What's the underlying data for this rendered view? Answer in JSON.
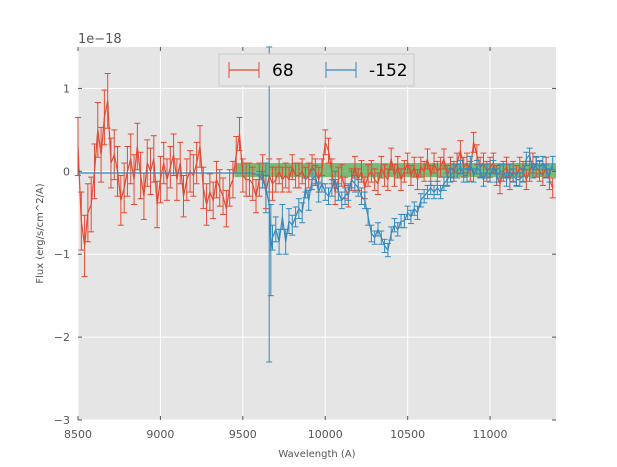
{
  "chart_data": {
    "type": "line",
    "xlabel": "Wavelength (A)",
    "ylabel": "Flux (erg/s/cm^2/A)",
    "y_offset_label": "1e−18",
    "xlim": [
      8500,
      11400
    ],
    "ylim": [
      -3,
      1.5
    ],
    "x_ticks": [
      8500,
      9000,
      9500,
      10000,
      10500,
      11000
    ],
    "y_ticks": [
      -3,
      -2,
      -1,
      0,
      1
    ],
    "x_tick_labels": [
      "8500",
      "9000",
      "9500",
      "10000",
      "10500",
      "11000"
    ],
    "y_tick_labels": [
      "−3",
      "−2",
      "−1",
      "0",
      "1"
    ],
    "grid": true,
    "background": "#e5e5e5",
    "legend_position": "top-center",
    "highlight_band": {
      "x": [
        9450,
        11400
      ],
      "y": [
        -0.07,
        0.1
      ],
      "color": "#2ca02c"
    },
    "series": [
      {
        "name": "68",
        "color": "#e24a33",
        "x": [
          8500,
          8520,
          8540,
          8560,
          8580,
          8600,
          8620,
          8640,
          8660,
          8680,
          8700,
          8720,
          8740,
          8760,
          8780,
          8800,
          8820,
          8840,
          8860,
          8880,
          8900,
          8920,
          8940,
          8960,
          8980,
          9000,
          9020,
          9040,
          9060,
          9080,
          9100,
          9120,
          9140,
          9160,
          9180,
          9200,
          9220,
          9240,
          9260,
          9280,
          9300,
          9320,
          9340,
          9360,
          9380,
          9400,
          9420,
          9440,
          9460,
          9480,
          9500,
          9520,
          9540,
          9560,
          9580,
          9600,
          9620,
          9640,
          9660,
          9680,
          9700,
          9720,
          9740,
          9760,
          9780,
          9800,
          9820,
          9840,
          9860,
          9880,
          9900,
          9920,
          9940,
          9960,
          9980,
          10000,
          10020,
          10040,
          10060,
          10080,
          10100,
          10120,
          10140,
          10160,
          10180,
          10200,
          10220,
          10240,
          10260,
          10280,
          10300,
          10320,
          10340,
          10360,
          10380,
          10400,
          10420,
          10440,
          10460,
          10480,
          10500,
          10520,
          10540,
          10560,
          10580,
          10600,
          10620,
          10640,
          10660,
          10680,
          10700,
          10720,
          10740,
          10760,
          10780,
          10800,
          10820,
          10840,
          10860,
          10880,
          10900,
          10920,
          10940,
          10960,
          10980,
          11000,
          11020,
          11040,
          11060,
          11080,
          11100,
          11120,
          11140,
          11160,
          11180,
          11200,
          11220,
          11240,
          11260,
          11280,
          11300,
          11320,
          11340,
          11360,
          11380
        ],
        "y": [
          0.3,
          -0.6,
          -0.9,
          -0.5,
          -0.4,
          0.0,
          0.5,
          0.2,
          0.65,
          0.85,
          0.1,
          0.2,
          0.0,
          -0.35,
          -0.2,
          0.0,
          0.15,
          -0.1,
          0.3,
          -0.05,
          -0.3,
          0.1,
          0.0,
          0.15,
          -0.4,
          -0.1,
          0.1,
          -0.1,
          0.05,
          0.2,
          -0.1,
          0.1,
          -0.3,
          -0.1,
          0.0,
          -0.05,
          0.1,
          0.3,
          -0.2,
          -0.4,
          -0.25,
          -0.35,
          -0.1,
          -0.2,
          -0.3,
          -0.45,
          -0.2,
          -0.1,
          0.2,
          0.45,
          -0.05,
          -0.1,
          -0.1,
          -0.15,
          -0.3,
          -0.1,
          0.0,
          -0.25,
          -0.05,
          -0.15,
          -0.1,
          0.0,
          -0.1,
          -0.05,
          -0.1,
          0.05,
          -0.05,
          -0.05,
          0.0,
          -0.1,
          -0.05,
          0.05,
          0.0,
          -0.1,
          0.0,
          0.35,
          0.25,
          0.0,
          -0.25,
          -0.1,
          -0.05,
          -0.2,
          -0.3,
          -0.1,
          0.05,
          -0.1,
          0.0,
          -0.2,
          -0.05,
          0.0,
          -0.1,
          -0.15,
          0.05,
          -0.05,
          -0.1,
          0.15,
          -0.05,
          0.05,
          -0.1,
          0.0,
          0.1,
          -0.05,
          0.05,
          -0.1,
          0.05,
          0.0,
          0.15,
          -0.05,
          0.1,
          0.0,
          0.05,
          0.15,
          -0.05,
          0.05,
          0.0,
          0.1,
          0.25,
          0.05,
          0.1,
          0.0,
          0.35,
          0.2,
          0.05,
          0.1,
          0.0,
          0.05,
          0.1,
          -0.05,
          -0.15,
          0.0,
          0.05,
          -0.1,
          0.0,
          -0.05,
          0.05,
          0.0,
          -0.1,
          0.0,
          0.1,
          0.05,
          0.0,
          -0.05,
          0.05,
          -0.1,
          -0.2
        ],
        "err": [
          0.35,
          0.35,
          0.37,
          0.35,
          0.33,
          0.33,
          0.33,
          0.33,
          0.33,
          0.33,
          0.3,
          0.3,
          0.3,
          0.3,
          0.3,
          0.3,
          0.3,
          0.3,
          0.28,
          0.28,
          0.28,
          0.28,
          0.28,
          0.28,
          0.28,
          0.28,
          0.25,
          0.25,
          0.25,
          0.25,
          0.25,
          0.25,
          0.25,
          0.25,
          0.25,
          0.25,
          0.25,
          0.25,
          0.25,
          0.25,
          0.22,
          0.22,
          0.22,
          0.22,
          0.22,
          0.22,
          0.22,
          0.22,
          0.22,
          0.2,
          0.2,
          0.2,
          0.2,
          0.2,
          0.2,
          0.2,
          0.2,
          0.2,
          0.2,
          0.2,
          0.15,
          0.15,
          0.15,
          0.15,
          0.15,
          0.15,
          0.15,
          0.15,
          0.15,
          0.15,
          0.15,
          0.15,
          0.15,
          0.15,
          0.15,
          0.15,
          0.15,
          0.15,
          0.15,
          0.15,
          0.13,
          0.13,
          0.13,
          0.13,
          0.13,
          0.13,
          0.13,
          0.13,
          0.13,
          0.13,
          0.13,
          0.13,
          0.13,
          0.13,
          0.13,
          0.13,
          0.13,
          0.13,
          0.13,
          0.13,
          0.12,
          0.12,
          0.12,
          0.12,
          0.12,
          0.12,
          0.12,
          0.12,
          0.12,
          0.12,
          0.12,
          0.12,
          0.12,
          0.12,
          0.12,
          0.12,
          0.12,
          0.12,
          0.12,
          0.12,
          0.12,
          0.12,
          0.12,
          0.12,
          0.12,
          0.12,
          0.12,
          0.12,
          0.12,
          0.12,
          0.12,
          0.12,
          0.12,
          0.12,
          0.12,
          0.12,
          0.12,
          0.12,
          0.12,
          0.12,
          0.12,
          0.12,
          0.12,
          0.12,
          0.12
        ]
      },
      {
        "name": "-152",
        "color": "#348abd",
        "x": [
          8500,
          8600,
          8700,
          8800,
          8900,
          9000,
          9100,
          9200,
          9300,
          9400,
          9500,
          9550,
          9600,
          9620,
          9640,
          9660,
          9670,
          9680,
          9700,
          9720,
          9740,
          9760,
          9780,
          9800,
          9820,
          9840,
          9860,
          9880,
          9900,
          9920,
          9940,
          9960,
          9980,
          10000,
          10020,
          10040,
          10060,
          10080,
          10100,
          10120,
          10140,
          10160,
          10180,
          10200,
          10220,
          10240,
          10260,
          10280,
          10300,
          10320,
          10340,
          10360,
          10380,
          10400,
          10420,
          10440,
          10460,
          10480,
          10500,
          10520,
          10540,
          10560,
          10580,
          10600,
          10620,
          10640,
          10660,
          10680,
          10700,
          10720,
          10740,
          10760,
          10780,
          10800,
          10820,
          10840,
          10860,
          10880,
          10900,
          10920,
          10940,
          10960,
          10980,
          11000,
          11020,
          11040,
          11060,
          11080,
          11100,
          11120,
          11140,
          11160,
          11180,
          11200,
          11220,
          11240,
          11260,
          11280,
          11300,
          11320,
          11340,
          11360,
          11380
        ],
        "y": [
          -0.02,
          -0.02,
          -0.02,
          -0.02,
          -0.02,
          -0.02,
          -0.02,
          -0.02,
          -0.02,
          -0.02,
          -0.02,
          -0.02,
          -0.05,
          -0.1,
          -0.2,
          -0.4,
          -0.95,
          -0.8,
          -0.7,
          -0.85,
          -0.55,
          -0.85,
          -0.6,
          -0.65,
          -0.55,
          -0.45,
          -0.5,
          -0.2,
          -0.35,
          -0.1,
          -0.05,
          -0.25,
          -0.15,
          -0.25,
          -0.3,
          -0.2,
          -0.1,
          -0.25,
          -0.35,
          -0.3,
          -0.25,
          -0.1,
          -0.15,
          -0.2,
          -0.3,
          -0.35,
          -0.55,
          -0.75,
          -0.8,
          -0.7,
          -0.8,
          -0.9,
          -0.95,
          -0.75,
          -0.65,
          -0.7,
          -0.6,
          -0.6,
          -0.5,
          -0.55,
          -0.45,
          -0.5,
          -0.35,
          -0.3,
          -0.25,
          -0.2,
          -0.25,
          -0.2,
          -0.25,
          -0.15,
          -0.1,
          -0.05,
          0.0,
          0.0,
          0.05,
          -0.05,
          -0.05,
          0.1,
          -0.05,
          0.05,
          0.0,
          -0.1,
          0.0,
          -0.05,
          0.05,
          -0.05,
          0.0,
          0.0,
          -0.1,
          0.0,
          -0.05,
          -0.1,
          -0.1,
          -0.05,
          0.15,
          0.2,
          0.0,
          0.1,
          0.05,
          0.1,
          0.0,
          -0.05,
          0.1
        ],
        "err": [
          0.02,
          0.02,
          0.02,
          0.02,
          0.02,
          0.02,
          0.02,
          0.02,
          0.02,
          0.02,
          0.02,
          0.02,
          0.05,
          0.1,
          0.3,
          1.9,
          0.55,
          0.15,
          0.15,
          0.15,
          0.15,
          0.15,
          0.15,
          0.12,
          0.12,
          0.12,
          0.12,
          0.12,
          0.12,
          0.12,
          0.12,
          0.12,
          0.1,
          0.1,
          0.1,
          0.1,
          0.1,
          0.1,
          0.1,
          0.1,
          0.1,
          0.1,
          0.1,
          0.1,
          0.1,
          0.1,
          0.1,
          0.1,
          0.08,
          0.08,
          0.08,
          0.08,
          0.08,
          0.08,
          0.08,
          0.08,
          0.08,
          0.08,
          0.08,
          0.08,
          0.08,
          0.08,
          0.08,
          0.08,
          0.08,
          0.08,
          0.08,
          0.08,
          0.08,
          0.08,
          0.08,
          0.08,
          0.08,
          0.08,
          0.08,
          0.08,
          0.08,
          0.08,
          0.08,
          0.08,
          0.08,
          0.08,
          0.08,
          0.08,
          0.08,
          0.08,
          0.08,
          0.08,
          0.08,
          0.08,
          0.08,
          0.08,
          0.08,
          0.08,
          0.08,
          0.08,
          0.08,
          0.08,
          0.08,
          0.08,
          0.08,
          0.08,
          0.08
        ]
      }
    ]
  }
}
